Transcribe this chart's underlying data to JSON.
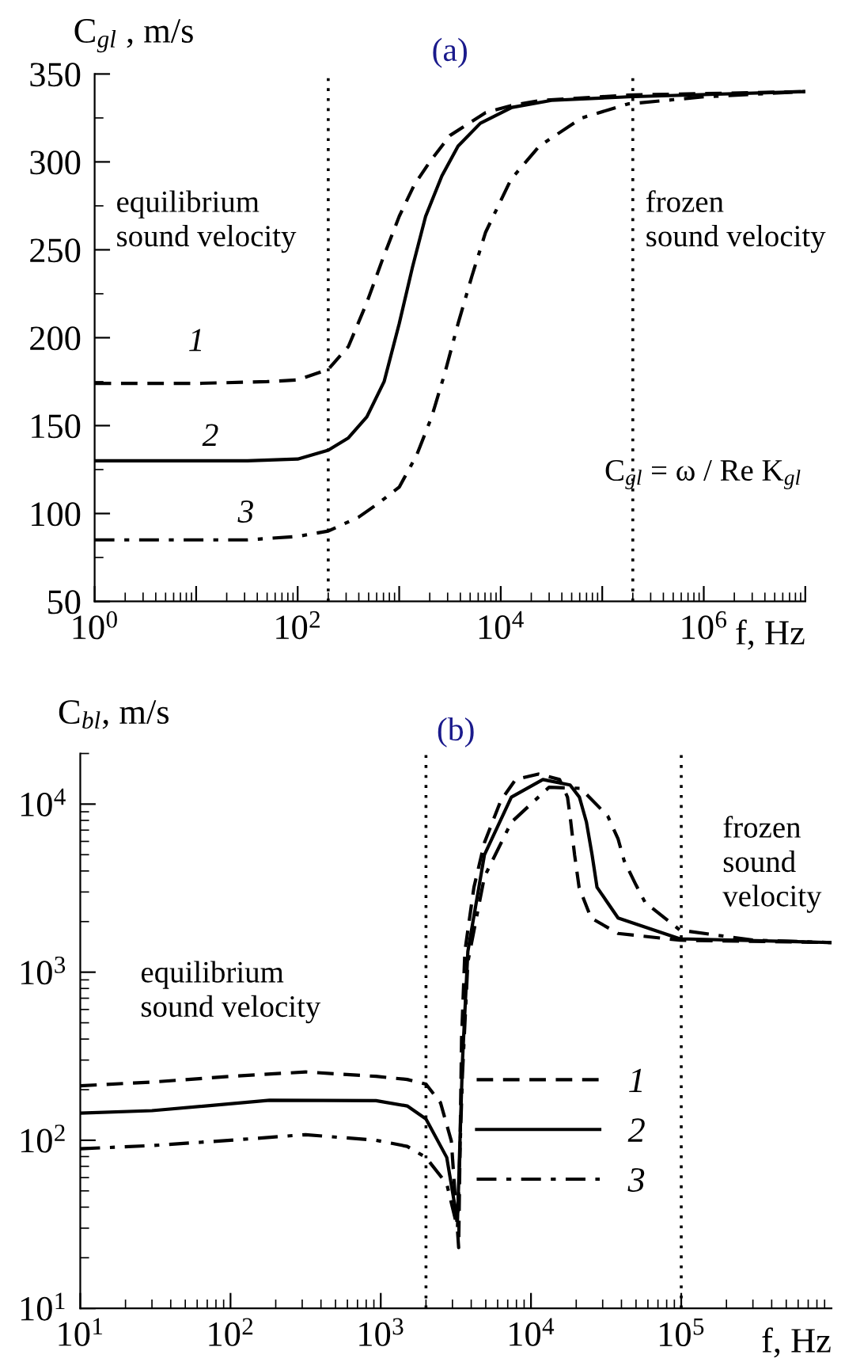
{
  "chart_data": [
    {
      "type": "line",
      "title": "(a)",
      "ylabel": "C$_{gl}$ , m/s",
      "xlabel": "f, Hz",
      "log": "x",
      "xlim": [
        1,
        10000000
      ],
      "ylim": [
        50,
        350
      ],
      "xticks": [
        {
          "value": 1,
          "label": "10$^{0}$"
        },
        {
          "value": 10,
          "label": null
        },
        {
          "value": 100,
          "label": "10$^{2}$"
        },
        {
          "value": 1000,
          "label": null
        },
        {
          "value": 10000,
          "label": "10$^{4}$"
        },
        {
          "value": 100000,
          "label": null
        },
        {
          "value": 1000000,
          "label": "10$^{6}$"
        },
        {
          "value": 10000000,
          "label": null
        }
      ],
      "yticks": [
        50,
        100,
        150,
        200,
        250,
        300,
        350
      ],
      "grid": false,
      "legend": false,
      "ref_lines": [
        {
          "axis": "x",
          "value": 200,
          "line_style": "dotted"
        },
        {
          "axis": "x",
          "value": 200000,
          "line_style": "dotted"
        }
      ],
      "annotations": [
        "equilibrium\nsound velocity",
        "frozen\nsound velocity",
        "C$_{gl}$ = ω / Re K$_{gl}$",
        "1",
        "2",
        "3"
      ],
      "series": [
        {
          "color": "#000000",
          "line_style": "dashed",
          "x": [
            1,
            10,
            50,
            100,
            200,
            316,
            480,
            690,
            1000,
            1410,
            2000,
            3160,
            7100,
            12600,
            25000,
            180000,
            10000000
          ],
          "values": [
            174,
            174,
            175,
            176,
            182,
            195,
            220,
            245,
            269,
            287,
            300,
            315,
            328,
            332,
            335,
            338,
            340
          ]
        },
        {
          "color": "#000000",
          "line_style": "solid",
          "x": [
            1,
            32,
            100,
            200,
            316,
            480,
            710,
            1000,
            1350,
            1820,
            2630,
            3800,
            6300,
            12900,
            31600,
            180000,
            10000000
          ],
          "values": [
            130,
            130,
            131,
            136,
            143,
            155,
            175,
            208,
            240,
            269,
            292,
            309,
            322,
            331,
            335,
            337,
            340
          ]
        },
        {
          "color": "#000000",
          "line_style": "dashdot",
          "x": [
            1,
            32,
            100,
            200,
            400,
            630,
            1000,
            1480,
            2090,
            2820,
            3800,
            5200,
            7100,
            12600,
            24000,
            63000,
            180000,
            1000000,
            10000000
          ],
          "values": [
            85,
            85,
            87,
            90,
            98,
            106,
            115,
            133,
            155,
            180,
            208,
            235,
            260,
            290,
            309,
            325,
            333,
            337,
            340
          ]
        }
      ]
    },
    {
      "type": "line",
      "title": "(b)",
      "ylabel": "C$_{bl}$, m/s",
      "xlabel": "f, Hz",
      "log": "xy",
      "xlim": [
        10,
        1000000
      ],
      "ylim": [
        10,
        20000
      ],
      "xticks": [
        {
          "value": 10,
          "label": "10$^{1}$"
        },
        {
          "value": 100,
          "label": "10$^{2}$"
        },
        {
          "value": 1000,
          "label": "10$^{3}$"
        },
        {
          "value": 10000,
          "label": "10$^{4}$"
        },
        {
          "value": 100000,
          "label": "10$^{5}$"
        }
      ],
      "yticks": [
        {
          "value": 10,
          "label": "10$^{1}$"
        },
        {
          "value": 100,
          "label": "10$^{2}$"
        },
        {
          "value": 1000,
          "label": "10$^{3}$"
        },
        {
          "value": 10000,
          "label": "10$^{4}$"
        }
      ],
      "grid": false,
      "legend": "bottom center",
      "ref_lines": [
        {
          "axis": "x",
          "value": 2000,
          "line_style": "dotted"
        },
        {
          "axis": "x",
          "value": 100000,
          "line_style": "dotted"
        }
      ],
      "annotations": [
        "equilibrium\nsound velocity",
        "frozen\nsound\nvelocity"
      ],
      "series": [
        {
          "name": "1",
          "color": "#000000",
          "line_style": "dashed",
          "x": [
            10,
            30,
            100,
            316,
            930,
            1500,
            2000,
            2500,
            2950,
            3300,
            3450,
            3630,
            4170,
            4900,
            6300,
            7900,
            11200,
            15500,
            17500,
            18200,
            19500,
            20900,
            25100,
            38000,
            98000,
            1000000
          ],
          "values": [
            211,
            222,
            240,
            255,
            240,
            230,
            216,
            167,
            99,
            23,
            400,
            1330,
            3200,
            5900,
            10500,
            14000,
            15100,
            14000,
            11000,
            8500,
            5000,
            3200,
            2100,
            1700,
            1550,
            1500
          ]
        },
        {
          "name": "2",
          "color": "#000000",
          "line_style": "solid",
          "x": [
            10,
            30,
            182,
            930,
            1500,
            2000,
            2750,
            3240,
            3500,
            3800,
            4900,
            7400,
            12000,
            18200,
            21000,
            23400,
            25500,
            27500,
            38000,
            98000,
            1000000
          ],
          "values": [
            145,
            150,
            173,
            172,
            160,
            134,
            79,
            33,
            300,
            1330,
            5000,
            11000,
            14000,
            13000,
            11000,
            7800,
            5000,
            3200,
            2100,
            1580,
            1500
          ]
        },
        {
          "name": "3",
          "color": "#000000",
          "line_style": "dashdot",
          "x": [
            10,
            30,
            100,
            316,
            930,
            1500,
            2000,
            2750,
            3240,
            3500,
            3800,
            4900,
            7400,
            13200,
            21400,
            32400,
            38000,
            41700,
            50000,
            57500,
            98000,
            302000,
            1000000
          ],
          "values": [
            89,
            93,
            100,
            108,
            100,
            92,
            79,
            55,
            30,
            250,
            1150,
            3700,
            7800,
            12600,
            12400,
            8500,
            6200,
            4600,
            3300,
            2600,
            1780,
            1550,
            1500
          ]
        }
      ]
    }
  ]
}
